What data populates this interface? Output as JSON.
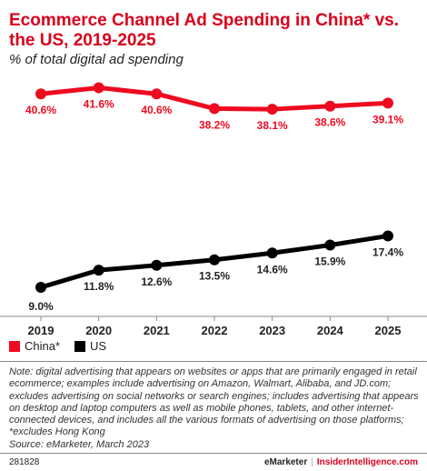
{
  "header": {
    "title": "Ecommerce Channel Ad Spending in China* vs. the US, 2019-2025",
    "subtitle": "% of total digital ad spending"
  },
  "chart_data": {
    "type": "line",
    "x": [
      "2019",
      "2020",
      "2021",
      "2022",
      "2023",
      "2024",
      "2025"
    ],
    "series": [
      {
        "name": "China*",
        "color": "#ee0a1f",
        "values": [
          40.6,
          41.6,
          40.6,
          38.2,
          38.1,
          38.6,
          39.1
        ],
        "labels": [
          "40.6%",
          "41.6%",
          "40.6%",
          "38.2%",
          "38.1%",
          "38.6%",
          "39.1%"
        ]
      },
      {
        "name": "US",
        "color": "#000000",
        "values": [
          9.0,
          11.8,
          12.6,
          13.5,
          14.6,
          15.9,
          17.4
        ],
        "labels": [
          "9.0%",
          "11.8%",
          "12.6%",
          "13.5%",
          "14.6%",
          "15.9%",
          "17.4%"
        ]
      }
    ],
    "grid": false,
    "legend_position": "bottom-left"
  },
  "legend": {
    "china_label": "China*",
    "us_label": "US"
  },
  "note": "Note: digital advertising that appears on websites or apps that are primarily engaged in retail ecommerce; examples include advertising on Amazon, Walmart, Alibaba, and JD.com; excludes advertising on social networks or search engines; includes advertising that appears on desktop and laptop computers as well as mobile phones, tablets, and other internet-connected devices, and includes all the various formats of advertising on those platforms; *excludes Hong Kong",
  "source": "Source: eMarketer, March 2023",
  "footer": {
    "chart_id": "281828",
    "brand": "eMarketer",
    "separator": "|",
    "site": "InsiderIntelligence.com"
  }
}
